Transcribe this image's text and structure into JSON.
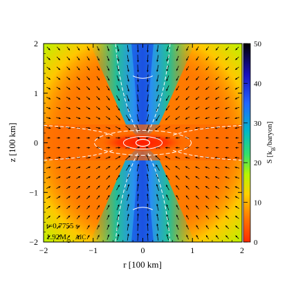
{
  "chart_data": {
    "type": "heatmap",
    "title": "",
    "xlabel": "r [100 km]",
    "ylabel": "z [100 km]",
    "xlim": [
      -2,
      2
    ],
    "ylim": [
      -2,
      2
    ],
    "xticks": [
      "−2",
      "−1",
      "0",
      "1",
      "2"
    ],
    "yticks": [
      "−2",
      "−1",
      "0",
      "1",
      "2"
    ],
    "colorbar": {
      "label": "S [k_B/baryon]",
      "label_parts": {
        "prefix": "S [k",
        "subscript": "B",
        "suffix": "/baryon]"
      },
      "range": [
        0,
        50
      ],
      "ticks": [
        "0",
        "10",
        "20",
        "30",
        "40",
        "50"
      ],
      "colors": [
        "#ff2a00",
        "#ff7700",
        "#ffd000",
        "#b8f500",
        "#33e06a",
        "#00b8c8",
        "#2266ff",
        "#1a10c0",
        "#000000"
      ]
    },
    "annotations": {
      "time": "t=0.7755 s",
      "mass_prefix": "1.92M",
      "mass_symbol": "⊙",
      "model": "AIC"
    },
    "overlay": {
      "velocity_vectors": true,
      "contours": true,
      "contour_color": "#ffffff"
    },
    "field_description_values": {
      "equatorial_disk_entropy": 7,
      "polar_funnel_entropy": 33,
      "outer_lobe_entropy": 20
    }
  }
}
